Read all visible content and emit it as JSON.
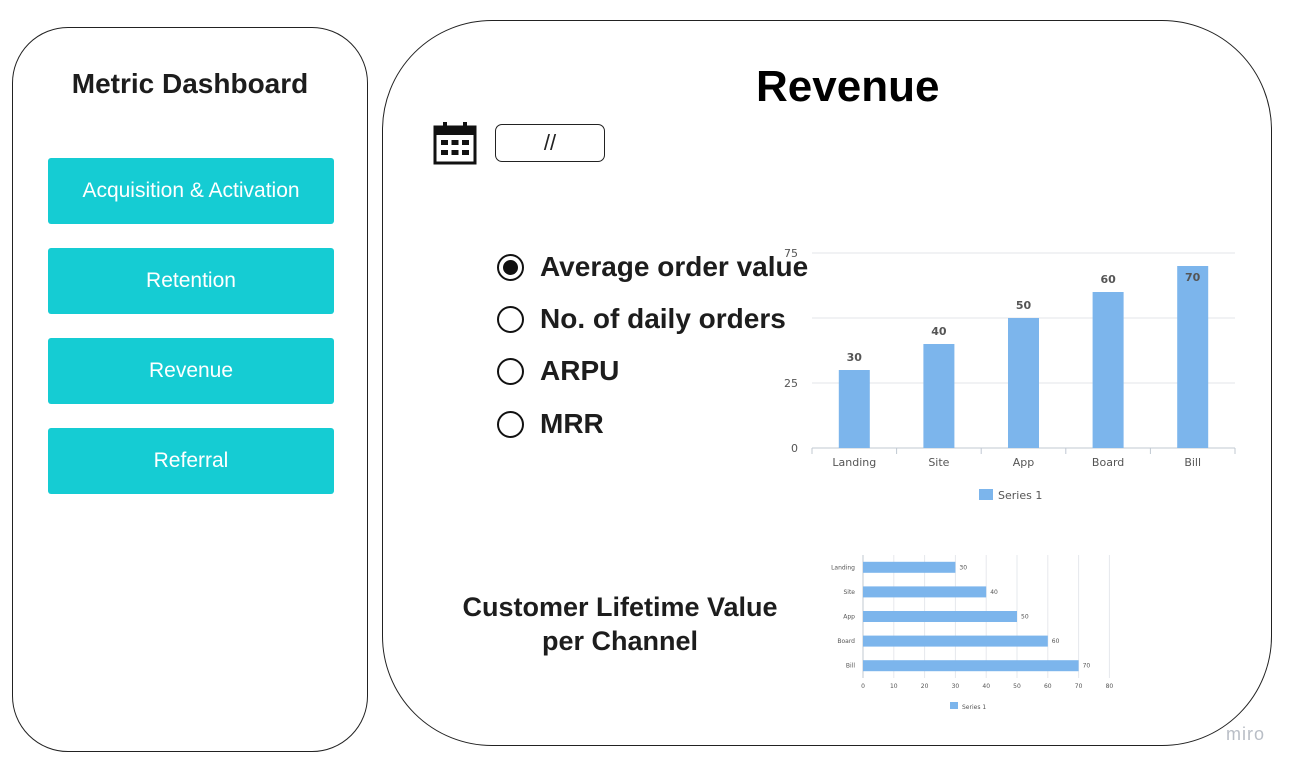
{
  "sidebar": {
    "title": "Metric Dashboard",
    "items": [
      {
        "label": "Acquisition & Activation"
      },
      {
        "label": "Retention"
      },
      {
        "label": "Revenue"
      },
      {
        "label": "Referral"
      }
    ]
  },
  "main": {
    "title": "Revenue",
    "date_value": "//",
    "metrics": [
      {
        "label": "Average order value",
        "selected": true
      },
      {
        "label": "No. of daily orders",
        "selected": false
      },
      {
        "label": "ARPU",
        "selected": false
      },
      {
        "label": "MRR",
        "selected": false
      }
    ],
    "clv_title_line1": "Customer Lifetime Value",
    "clv_title_line2": "per Channel"
  },
  "watermark": "miro",
  "colors": {
    "nav_button": "#15ccd3",
    "bar": "#7cb5ec",
    "text": "#1d1d1d"
  },
  "icons": {
    "calendar": "calendar-icon"
  },
  "chart_data": [
    {
      "type": "bar",
      "categories": [
        "Landing",
        "Site",
        "App",
        "Board",
        "Bill"
      ],
      "series": [
        {
          "name": "Series 1",
          "values": [
            30,
            40,
            50,
            60,
            70
          ]
        }
      ],
      "yticks": [
        "0",
        "25",
        "",
        "75"
      ],
      "ylim": [
        0,
        75
      ],
      "legend": "bottom",
      "grid": true
    },
    {
      "type": "bar",
      "orientation": "horizontal",
      "categories": [
        "Landing",
        "Site",
        "App",
        "Board",
        "Bill"
      ],
      "series": [
        {
          "name": "Series 1",
          "values": [
            30,
            40,
            50,
            60,
            70
          ]
        }
      ],
      "xticks": [
        "0",
        "10",
        "20",
        "30",
        "40",
        "50",
        "60",
        "70",
        "80"
      ],
      "xlim": [
        0,
        80
      ],
      "legend": "bottom",
      "grid": true
    }
  ]
}
